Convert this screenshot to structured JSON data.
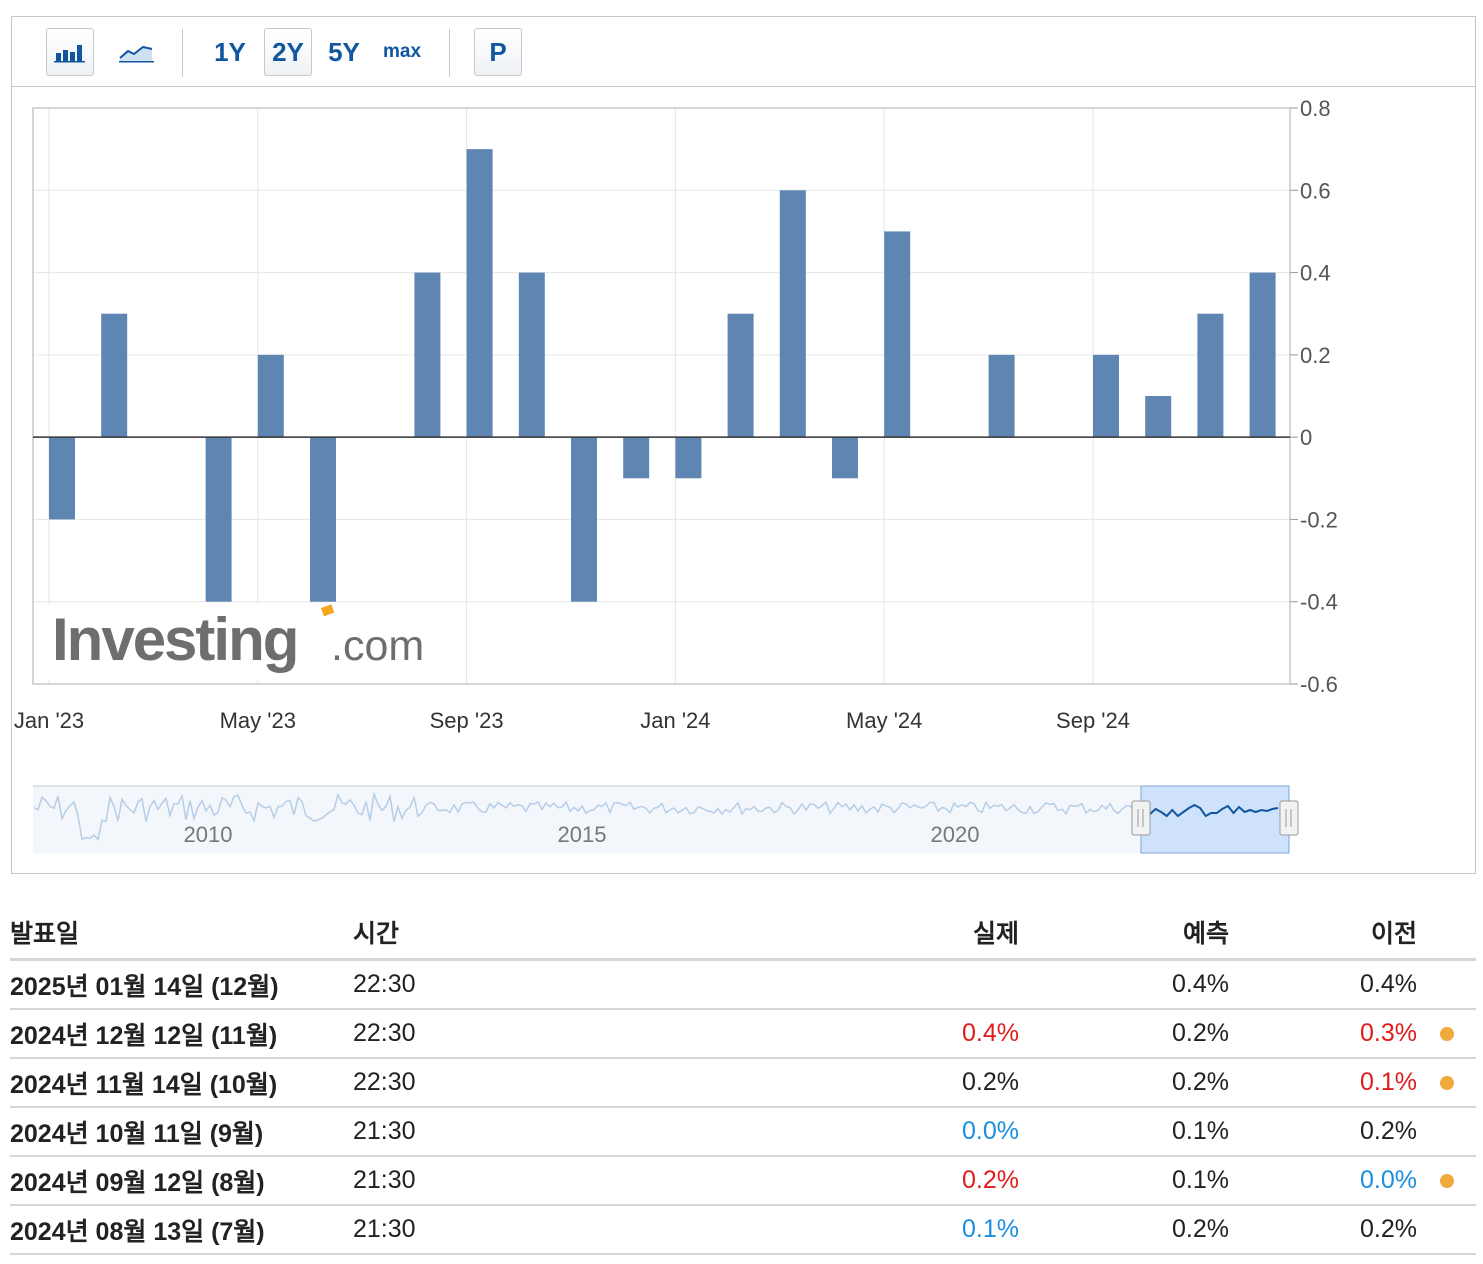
{
  "toolbar": {
    "bar_icon": "bar-chart-icon",
    "line_icon": "line-chart-icon",
    "ranges": [
      "1Y",
      "2Y",
      "5Y",
      "max"
    ],
    "active_range": "2Y",
    "p_label": "P"
  },
  "chart_data": {
    "type": "bar",
    "categories": [
      "Jan '23",
      "Feb '23",
      "Mar '23",
      "Apr '23",
      "May '23",
      "Jun '23",
      "Jul '23",
      "Aug '23",
      "Sep '23",
      "Oct '23",
      "Nov '23",
      "Dec '23",
      "Jan '24",
      "Feb '24",
      "Mar '24",
      "Apr '24",
      "May '24",
      "Jun '24",
      "Jul '24",
      "Aug '24",
      "Sep '24",
      "Oct '24",
      "Nov '24",
      "Dec '24"
    ],
    "values": [
      -0.2,
      0.3,
      0.0,
      -0.4,
      0.2,
      -0.4,
      0.0,
      0.4,
      0.7,
      0.4,
      -0.4,
      -0.1,
      -0.1,
      0.3,
      0.6,
      -0.1,
      0.5,
      0.0,
      0.2,
      0.0,
      0.2,
      0.1,
      0.3,
      0.4
    ],
    "ylim": [
      -0.6,
      0.8
    ],
    "yticks": [
      "0.8",
      "0.6",
      "0.4",
      "0.2",
      "0",
      "-0.2",
      "-0.4",
      "-0.6"
    ],
    "x_tick_labels": [
      "Jan '23",
      "May '23",
      "Sep '23",
      "Jan '24",
      "May '24",
      "Sep '24"
    ],
    "navigator_labels": [
      "2010",
      "2015",
      "2020"
    ],
    "watermark": "Investing.com",
    "bar_color": "#5f86b3"
  },
  "table": {
    "headers": {
      "date": "발표일",
      "time": "시간",
      "actual": "실제",
      "forecast": "예측",
      "previous": "이전"
    },
    "rows": [
      {
        "date": "2025년 01월 14일 (12월)",
        "time": "22:30",
        "actual": "",
        "actual_color": "#222222",
        "forecast": "0.4%",
        "previous": "0.4%",
        "previous_color": "#222222",
        "dot": false
      },
      {
        "date": "2024년 12월 12일 (11월)",
        "time": "22:30",
        "actual": "0.4%",
        "actual_color": "#e01b1b",
        "forecast": "0.2%",
        "previous": "0.3%",
        "previous_color": "#e01b1b",
        "dot": true
      },
      {
        "date": "2024년 11월 14일 (10월)",
        "time": "22:30",
        "actual": "0.2%",
        "actual_color": "#222222",
        "forecast": "0.2%",
        "previous": "0.1%",
        "previous_color": "#e01b1b",
        "dot": true
      },
      {
        "date": "2024년 10월 11일 (9월)",
        "time": "21:30",
        "actual": "0.0%",
        "actual_color": "#1a8ee0",
        "forecast": "0.1%",
        "previous": "0.2%",
        "previous_color": "#222222",
        "dot": false
      },
      {
        "date": "2024년 09월 12일 (8월)",
        "time": "21:30",
        "actual": "0.2%",
        "actual_color": "#e01b1b",
        "forecast": "0.1%",
        "previous": "0.0%",
        "previous_color": "#1a8ee0",
        "dot": true
      },
      {
        "date": "2024년 08월 13일 (7월)",
        "time": "21:30",
        "actual": "0.1%",
        "actual_color": "#1a8ee0",
        "forecast": "0.2%",
        "previous": "0.2%",
        "previous_color": "#222222",
        "dot": false
      }
    ]
  }
}
